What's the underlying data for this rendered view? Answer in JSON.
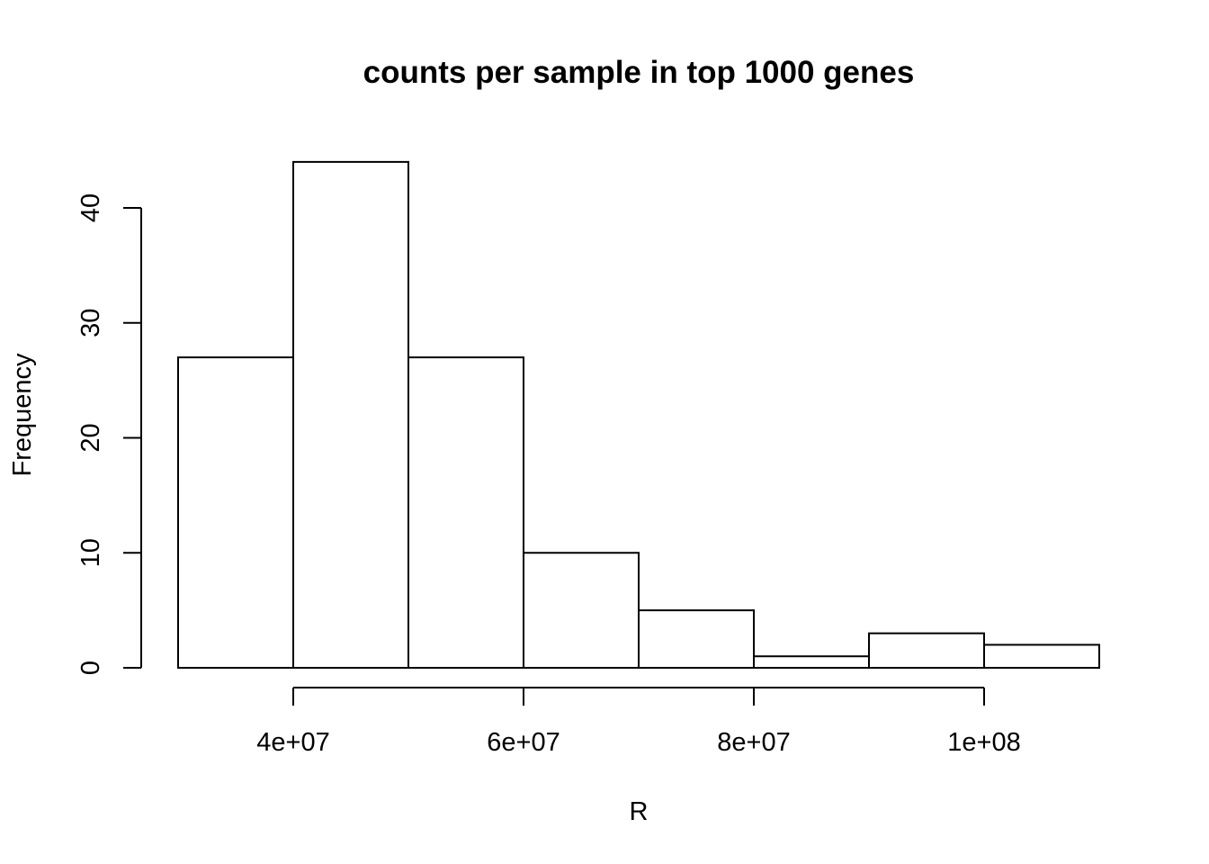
{
  "chart_data": {
    "type": "bar",
    "title": "counts per sample in top 1000 genes",
    "xlabel": "R",
    "ylabel": "Frequency",
    "bins": [
      {
        "start": 30000000,
        "end": 40000000,
        "count": 27
      },
      {
        "start": 40000000,
        "end": 50000000,
        "count": 44
      },
      {
        "start": 50000000,
        "end": 60000000,
        "count": 27
      },
      {
        "start": 60000000,
        "end": 70000000,
        "count": 10
      },
      {
        "start": 70000000,
        "end": 80000000,
        "count": 5
      },
      {
        "start": 80000000,
        "end": 90000000,
        "count": 1
      },
      {
        "start": 90000000,
        "end": 100000000,
        "count": 3
      },
      {
        "start": 100000000,
        "end": 110000000,
        "count": 2
      }
    ],
    "xlim": [
      30000000,
      110000000
    ],
    "ylim": [
      0,
      44
    ],
    "x_ticks": [
      {
        "value": 40000000,
        "label": "4e+07"
      },
      {
        "value": 60000000,
        "label": "6e+07"
      },
      {
        "value": 80000000,
        "label": "8e+07"
      },
      {
        "value": 100000000,
        "label": "1e+08"
      }
    ],
    "y_ticks": [
      {
        "value": 0,
        "label": "0"
      },
      {
        "value": 10,
        "label": "10"
      },
      {
        "value": 20,
        "label": "20"
      },
      {
        "value": 30,
        "label": "30"
      },
      {
        "value": 40,
        "label": "40"
      }
    ],
    "grid": false,
    "bar_fill": "#ffffff",
    "bar_stroke": "#000000"
  }
}
